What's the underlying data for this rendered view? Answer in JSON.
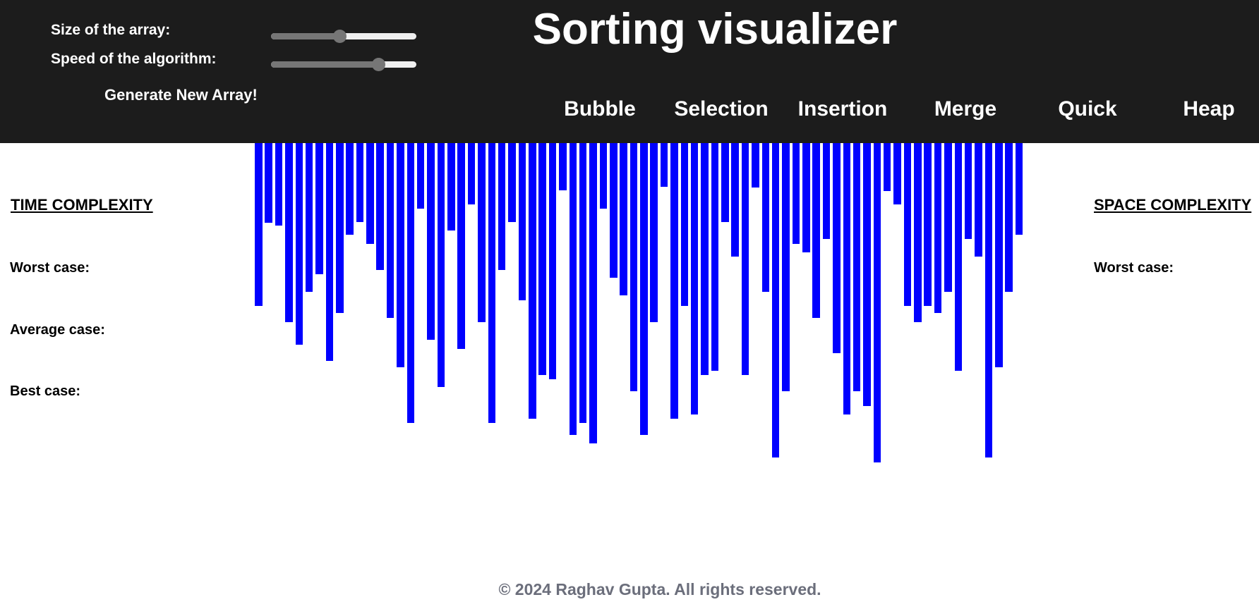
{
  "controls": {
    "size_label": "Size of the array:",
    "size_value_fraction": 0.47,
    "speed_label": "Speed of the algorithm:",
    "speed_value_fraction": 0.74,
    "generate_label": "Generate New Array!"
  },
  "title": "Sorting visualizer",
  "algorithms": [
    "Bubble",
    "Selection",
    "Insertion",
    "Merge",
    "Quick",
    "Heap"
  ],
  "time_complexity": {
    "heading": "TIME COMPLEXITY",
    "worst_label": "Worst case:",
    "average_label": "Average case:",
    "best_label": "Best case:"
  },
  "space_complexity": {
    "heading": "SPACE COMPLEXITY",
    "worst_label": "Worst case:"
  },
  "array": {
    "bar_color": "#0000ff",
    "values": [
      231,
      113,
      117,
      254,
      286,
      211,
      186,
      309,
      241,
      130,
      112,
      143,
      180,
      248,
      318,
      397,
      93,
      279,
      346,
      124,
      292,
      87,
      254,
      397,
      180,
      112,
      223,
      391,
      329,
      335,
      67,
      414,
      397,
      426,
      93,
      191,
      216,
      352,
      414,
      254,
      62,
      391,
      231,
      385,
      329,
      323,
      112,
      161,
      329,
      63,
      211,
      446,
      352,
      143,
      155,
      248,
      136,
      298,
      385,
      352,
      373,
      453,
      68,
      87,
      231,
      254,
      231,
      241,
      211,
      323,
      136,
      161,
      446,
      318,
      211,
      130
    ]
  },
  "footer": "© 2024 Raghav Gupta. All rights reserved."
}
